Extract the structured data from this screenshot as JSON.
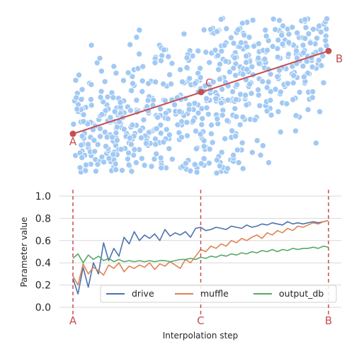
{
  "colors": {
    "scatter": "#a1c9f4",
    "path": "#c44e52",
    "drive": "#4c72b0",
    "muffle": "#dd8452",
    "output_db": "#55a868",
    "grid": "#d9d9d9"
  },
  "chart_data": [
    {
      "type": "scatter",
      "description_free": true,
      "points_count": 900,
      "cluster": {
        "centroid": [
          0,
          0
        ],
        "major_axis_angle_deg": -22
      },
      "path_points": [
        {
          "label": "A",
          "x": -1.0,
          "y": -0.55
        },
        {
          "label": "C",
          "x": 0.0,
          "y": 0.0
        },
        {
          "label": "B",
          "x": 1.0,
          "y": 0.55
        }
      ]
    },
    {
      "type": "line",
      "xlabel": "Interpolation step",
      "ylabel": "Parameter value",
      "ylim": [
        0.0,
        1.0
      ],
      "yticks": [
        "0.0",
        "0.2",
        "0.4",
        "0.6",
        "0.8",
        "1.0"
      ],
      "xticks": [
        {
          "label": "A",
          "x": 0
        },
        {
          "label": "C",
          "x": 0.5
        },
        {
          "label": "B",
          "x": 1
        }
      ],
      "grid": true,
      "legend": "bottom-right",
      "series": [
        {
          "name": "drive",
          "x": [
            0,
            0.02,
            0.04,
            0.06,
            0.08,
            0.1,
            0.12,
            0.14,
            0.16,
            0.18,
            0.2,
            0.22,
            0.24,
            0.26,
            0.28,
            0.3,
            0.32,
            0.34,
            0.36,
            0.38,
            0.4,
            0.42,
            0.44,
            0.46,
            0.48,
            0.5,
            0.52,
            0.54,
            0.56,
            0.58,
            0.6,
            0.62,
            0.64,
            0.66,
            0.68,
            0.7,
            0.72,
            0.74,
            0.76,
            0.78,
            0.8,
            0.82,
            0.84,
            0.86,
            0.88,
            0.9,
            0.92,
            0.94,
            0.96,
            0.98,
            1.0
          ],
          "values": [
            0.26,
            0.12,
            0.36,
            0.18,
            0.4,
            0.3,
            0.58,
            0.42,
            0.53,
            0.46,
            0.63,
            0.57,
            0.68,
            0.6,
            0.65,
            0.62,
            0.66,
            0.6,
            0.7,
            0.64,
            0.67,
            0.65,
            0.68,
            0.63,
            0.71,
            0.72,
            0.69,
            0.7,
            0.72,
            0.71,
            0.7,
            0.73,
            0.72,
            0.71,
            0.74,
            0.72,
            0.73,
            0.75,
            0.74,
            0.76,
            0.75,
            0.74,
            0.77,
            0.75,
            0.76,
            0.75,
            0.76,
            0.77,
            0.76,
            0.77,
            0.78
          ]
        },
        {
          "name": "muffle",
          "x": [
            0,
            0.02,
            0.04,
            0.06,
            0.08,
            0.1,
            0.12,
            0.14,
            0.16,
            0.18,
            0.2,
            0.22,
            0.24,
            0.26,
            0.28,
            0.3,
            0.32,
            0.34,
            0.36,
            0.38,
            0.4,
            0.42,
            0.44,
            0.46,
            0.48,
            0.5,
            0.52,
            0.54,
            0.56,
            0.58,
            0.6,
            0.62,
            0.64,
            0.66,
            0.68,
            0.7,
            0.72,
            0.74,
            0.76,
            0.78,
            0.8,
            0.82,
            0.84,
            0.86,
            0.88,
            0.9,
            0.92,
            0.94,
            0.96,
            0.98,
            1.0
          ],
          "values": [
            0.28,
            0.2,
            0.39,
            0.3,
            0.36,
            0.33,
            0.29,
            0.38,
            0.35,
            0.4,
            0.32,
            0.37,
            0.35,
            0.38,
            0.36,
            0.4,
            0.34,
            0.39,
            0.37,
            0.41,
            0.38,
            0.35,
            0.43,
            0.4,
            0.46,
            0.52,
            0.5,
            0.55,
            0.53,
            0.57,
            0.55,
            0.6,
            0.58,
            0.62,
            0.6,
            0.63,
            0.65,
            0.62,
            0.67,
            0.65,
            0.69,
            0.67,
            0.71,
            0.69,
            0.73,
            0.72,
            0.74,
            0.76,
            0.75,
            0.77,
            0.78
          ]
        },
        {
          "name": "output_db",
          "x": [
            0,
            0.02,
            0.04,
            0.06,
            0.08,
            0.1,
            0.12,
            0.14,
            0.16,
            0.18,
            0.2,
            0.22,
            0.24,
            0.26,
            0.28,
            0.3,
            0.32,
            0.34,
            0.36,
            0.38,
            0.4,
            0.42,
            0.44,
            0.46,
            0.48,
            0.5,
            0.52,
            0.54,
            0.56,
            0.58,
            0.6,
            0.62,
            0.64,
            0.66,
            0.68,
            0.7,
            0.72,
            0.74,
            0.76,
            0.78,
            0.8,
            0.82,
            0.84,
            0.86,
            0.88,
            0.9,
            0.92,
            0.94,
            0.96,
            0.98,
            1.0
          ],
          "values": [
            0.44,
            0.48,
            0.4,
            0.47,
            0.43,
            0.46,
            0.42,
            0.44,
            0.41,
            0.43,
            0.41,
            0.42,
            0.41,
            0.42,
            0.41,
            0.42,
            0.41,
            0.42,
            0.42,
            0.41,
            0.42,
            0.43,
            0.43,
            0.44,
            0.43,
            0.45,
            0.44,
            0.46,
            0.45,
            0.47,
            0.46,
            0.48,
            0.47,
            0.49,
            0.48,
            0.5,
            0.49,
            0.51,
            0.5,
            0.52,
            0.5,
            0.52,
            0.51,
            0.53,
            0.52,
            0.53,
            0.53,
            0.54,
            0.53,
            0.55,
            0.54
          ]
        }
      ]
    }
  ]
}
